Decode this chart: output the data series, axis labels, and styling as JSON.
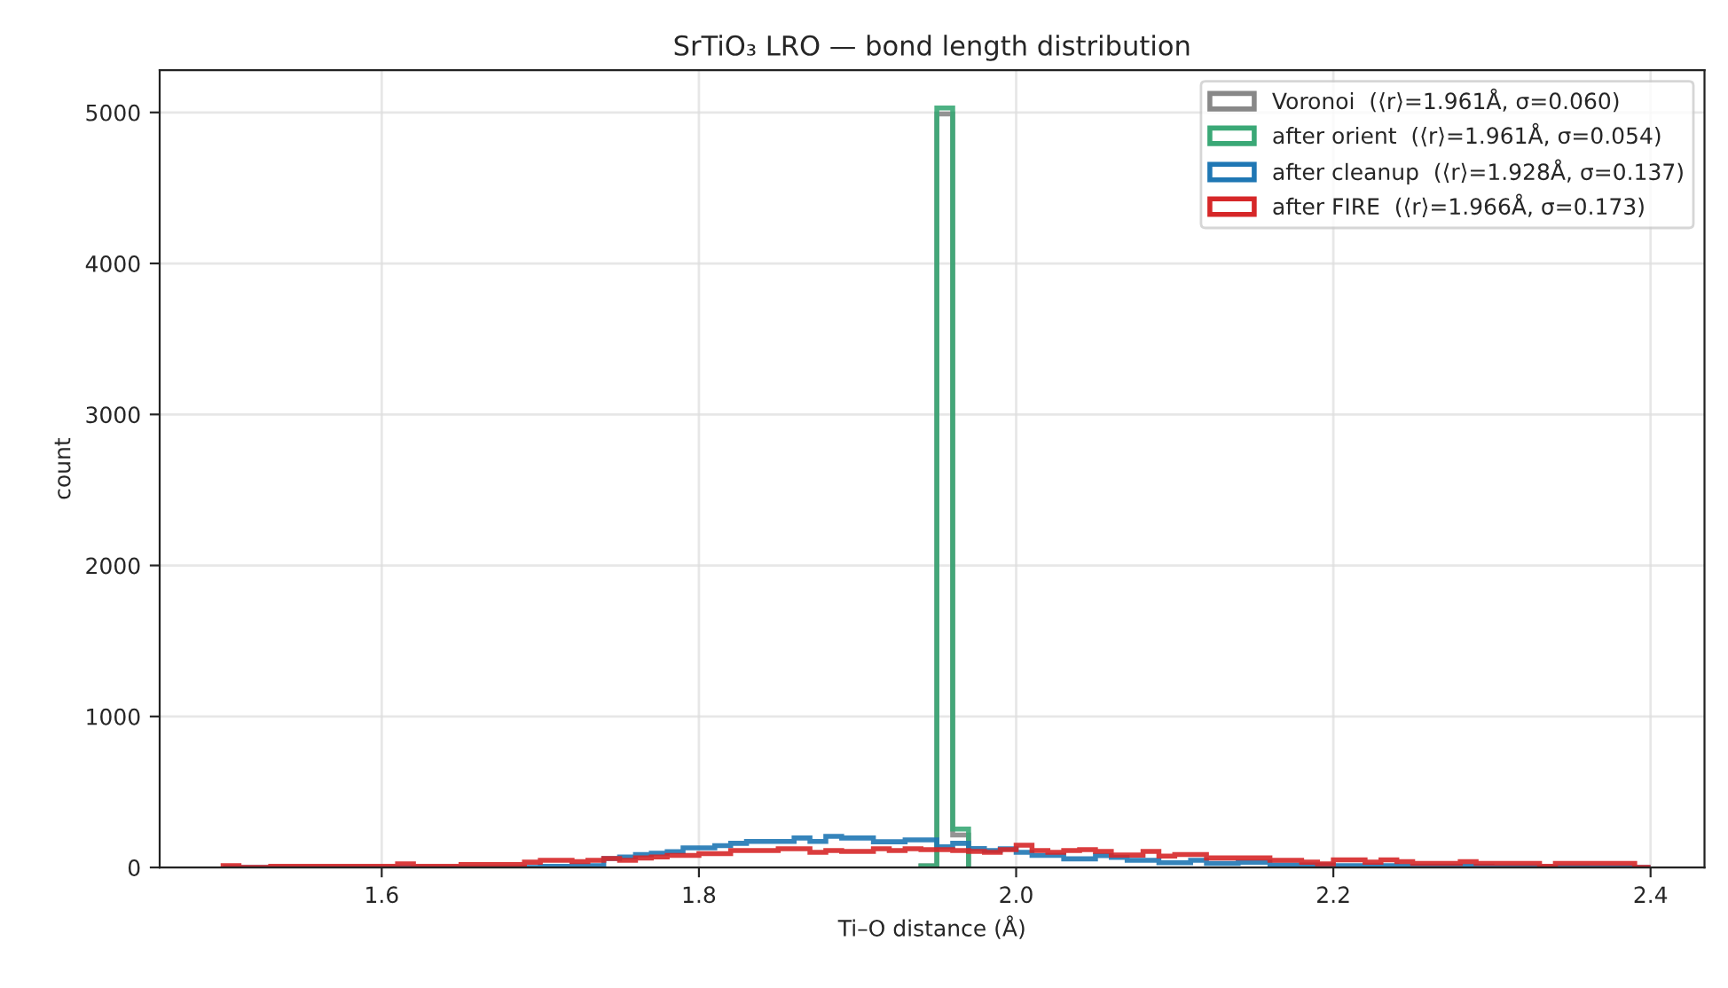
{
  "chart_data": {
    "type": "histogram",
    "title": "SrTiO₃ LRO — bond length distribution",
    "xlabel": "Ti–O distance (Å)",
    "ylabel": "count",
    "xlim": [
      1.46,
      2.434
    ],
    "ylim": [
      0,
      5280
    ],
    "xticks": [
      {
        "value": 1.6,
        "label": "1.6"
      },
      {
        "value": 1.8,
        "label": "1.8"
      },
      {
        "value": 2.0,
        "label": "2.0"
      },
      {
        "value": 2.2,
        "label": "2.2"
      },
      {
        "value": 2.4,
        "label": "2.4"
      }
    ],
    "yticks": [
      0,
      1000,
      2000,
      3000,
      4000,
      5000
    ],
    "grid": true,
    "legend": "top right",
    "bins": [
      1.5,
      1.51,
      1.52,
      1.53,
      1.54,
      1.55,
      1.56,
      1.57,
      1.58,
      1.59,
      1.6,
      1.61,
      1.62,
      1.63,
      1.64,
      1.65,
      1.66,
      1.67,
      1.68,
      1.69,
      1.7,
      1.71,
      1.72,
      1.73,
      1.74,
      1.75,
      1.76,
      1.77,
      1.78,
      1.79,
      1.8,
      1.81,
      1.82,
      1.83,
      1.84,
      1.85,
      1.86,
      1.87,
      1.88,
      1.89,
      1.9,
      1.91,
      1.92,
      1.93,
      1.94,
      1.95,
      1.96,
      1.97,
      1.98,
      1.99,
      2.0,
      2.01,
      2.02,
      2.03,
      2.04,
      2.05,
      2.06,
      2.07,
      2.08,
      2.09,
      2.1,
      2.11,
      2.12,
      2.13,
      2.14,
      2.15,
      2.16,
      2.17,
      2.18,
      2.19,
      2.2,
      2.21,
      2.22,
      2.23,
      2.24,
      2.25,
      2.26,
      2.27,
      2.28,
      2.29,
      2.3,
      2.31,
      2.32,
      2.33,
      2.34,
      2.35,
      2.36,
      2.37,
      2.38,
      2.39,
      2.4
    ],
    "series": [
      {
        "name": "Voronoi  (⟨r⟩=1.961Å, σ=0.060)",
        "color": "#888888",
        "bins": [
          1.94,
          1.95,
          1.96,
          1.97
        ],
        "values": [
          10,
          4990,
          215
        ]
      },
      {
        "name": "after orient  (⟨r⟩=1.961Å, σ=0.054)",
        "color": "#3aa876",
        "bins": [
          1.94,
          1.95,
          1.96,
          1.97
        ],
        "values": [
          10,
          5030,
          255
        ]
      },
      {
        "name": "after cleanup  (⟨r⟩=1.928Å, σ=0.137)",
        "color": "#1f77b4",
        "values": [
          0,
          0,
          0,
          0,
          0,
          0,
          0,
          0,
          0,
          0,
          0,
          0,
          0,
          0,
          0,
          0,
          0,
          0,
          0,
          0,
          8,
          8,
          12,
          12,
          59,
          70,
          85,
          95,
          105,
          130,
          130,
          145,
          160,
          172,
          172,
          172,
          195,
          172,
          206,
          195,
          195,
          170,
          170,
          183,
          183,
          137,
          160,
          125,
          112,
          124,
          100,
          80,
          80,
          57,
          57,
          78,
          67,
          47,
          47,
          31,
          31,
          47,
          27,
          27,
          35,
          35,
          16,
          16,
          16,
          16,
          12,
          12,
          12,
          12,
          8,
          8,
          8,
          8,
          8,
          8,
          4,
          4,
          4,
          4,
          4,
          4,
          0,
          0,
          0,
          0
        ]
      },
      {
        "name": "after FIRE  (⟨r⟩=1.966Å, σ=0.173)",
        "color": "#d62728",
        "values": [
          12,
          0,
          0,
          8,
          8,
          8,
          8,
          8,
          8,
          8,
          8,
          24,
          8,
          8,
          8,
          20,
          20,
          20,
          20,
          35,
          47,
          47,
          39,
          47,
          59,
          47,
          63,
          70,
          80,
          80,
          92,
          92,
          112,
          112,
          112,
          124,
          124,
          100,
          112,
          106,
          106,
          124,
          112,
          124,
          118,
          118,
          112,
          106,
          100,
          118,
          147,
          112,
          100,
          112,
          118,
          106,
          82,
          82,
          106,
          75,
          86,
          86,
          63,
          63,
          63,
          63,
          47,
          47,
          35,
          24,
          51,
          51,
          35,
          51,
          39,
          27,
          27,
          27,
          39,
          27,
          27,
          27,
          27,
          8,
          27,
          27,
          27,
          27,
          27,
          0
        ]
      }
    ]
  }
}
